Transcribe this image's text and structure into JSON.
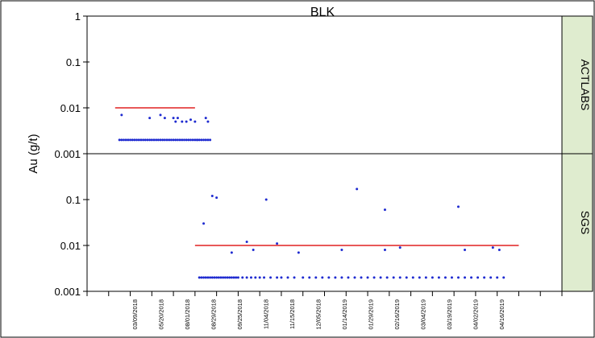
{
  "chart_data": {
    "type": "scatter",
    "title": "BLK",
    "ylabel": "Au (g/t)",
    "y_scale": "log",
    "colors": {
      "points": "#1f2bd0",
      "threshold": "#e02020",
      "panel_fill": "#dfeccf"
    },
    "x_ticks": [
      "03/09/2018",
      "05/20/2018",
      "08/01/2018",
      "08/29/2018",
      "09/25/2018",
      "11/04/2018",
      "11/15/2018",
      "12/05/2018",
      "01/14/2019",
      "01/29/2019",
      "02/16/2019",
      "03/04/2019",
      "03/19/2019",
      "04/02/2019",
      "04/16/2019"
    ],
    "panels": [
      {
        "name": "ACTLABS",
        "y_ticks": [
          "1",
          "0.1",
          "0.01",
          "0.001"
        ],
        "ylim": [
          0.001,
          1
        ],
        "threshold": 0.01,
        "threshold_x": [
          1.3,
          5.0
        ],
        "series": {
          "x": [
            1.5,
            1.6,
            1.7,
            1.8,
            1.9,
            2.0,
            2.1,
            2.2,
            2.3,
            2.4,
            2.5,
            2.6,
            2.7,
            2.8,
            2.9,
            3.0,
            3.1,
            3.2,
            3.3,
            3.4,
            3.5,
            3.6,
            3.7,
            3.8,
            3.9,
            4.0,
            4.1,
            4.2,
            4.3,
            4.4,
            4.5,
            4.6,
            4.7,
            4.8,
            4.9,
            5.0,
            5.1,
            5.2,
            5.3,
            5.4,
            5.5,
            5.6,
            1.6,
            2.9,
            3.4,
            3.6,
            4.0,
            4.1,
            4.2,
            4.4,
            4.6,
            5.0,
            5.5,
            5.6,
            5.7,
            4.8,
            5.1
          ],
          "y": [
            0.002,
            0.002,
            0.002,
            0.002,
            0.002,
            0.002,
            0.002,
            0.002,
            0.002,
            0.002,
            0.002,
            0.002,
            0.002,
            0.002,
            0.002,
            0.002,
            0.002,
            0.002,
            0.002,
            0.002,
            0.002,
            0.002,
            0.002,
            0.002,
            0.002,
            0.002,
            0.002,
            0.002,
            0.002,
            0.002,
            0.002,
            0.002,
            0.002,
            0.002,
            0.002,
            0.002,
            0.002,
            0.002,
            0.002,
            0.002,
            0.002,
            0.002,
            0.007,
            0.006,
            0.007,
            0.006,
            0.006,
            0.005,
            0.006,
            0.005,
            0.005,
            0.005,
            0.006,
            0.005,
            0.002,
            0.0055,
            0.002
          ]
        }
      },
      {
        "name": "SGS",
        "y_ticks": [
          "0.1",
          "0.01",
          "0.001"
        ],
        "ylim": [
          0.001,
          1
        ],
        "threshold": 0.01,
        "threshold_x": [
          5.0,
          20.0
        ],
        "series": {
          "x": [
            5.2,
            5.3,
            5.4,
            5.5,
            5.6,
            5.7,
            5.8,
            5.9,
            6.0,
            6.1,
            6.2,
            6.3,
            6.4,
            6.5,
            6.6,
            6.7,
            6.8,
            6.9,
            7.0,
            7.2,
            7.4,
            7.6,
            7.8,
            8.0,
            8.2,
            8.5,
            8.8,
            9.0,
            9.3,
            9.6,
            10.0,
            10.3,
            10.6,
            10.9,
            11.2,
            11.5,
            11.8,
            12.1,
            12.4,
            12.7,
            13.0,
            13.3,
            13.6,
            13.9,
            14.2,
            14.5,
            14.8,
            15.1,
            15.4,
            15.7,
            16.0,
            16.3,
            16.6,
            16.9,
            17.2,
            17.5,
            17.8,
            18.1,
            18.4,
            18.7,
            19.0,
            19.3,
            6.7,
            7.4,
            7.7,
            8.8,
            9.8,
            11.8,
            13.8,
            14.5,
            17.5,
            18.8,
            19.1,
            8.3,
            12.5,
            17.2,
            13.8,
            6.0,
            5.4,
            5.8
          ],
          "y": [
            0.002,
            0.002,
            0.002,
            0.002,
            0.002,
            0.002,
            0.002,
            0.002,
            0.002,
            0.002,
            0.002,
            0.002,
            0.002,
            0.002,
            0.002,
            0.002,
            0.002,
            0.002,
            0.002,
            0.002,
            0.002,
            0.002,
            0.002,
            0.002,
            0.002,
            0.002,
            0.002,
            0.002,
            0.002,
            0.002,
            0.002,
            0.002,
            0.002,
            0.002,
            0.002,
            0.002,
            0.002,
            0.002,
            0.002,
            0.002,
            0.002,
            0.002,
            0.002,
            0.002,
            0.002,
            0.002,
            0.002,
            0.002,
            0.002,
            0.002,
            0.002,
            0.002,
            0.002,
            0.002,
            0.002,
            0.002,
            0.002,
            0.002,
            0.002,
            0.002,
            0.002,
            0.002,
            0.007,
            0.012,
            0.008,
            0.011,
            0.007,
            0.008,
            0.008,
            0.009,
            0.008,
            0.009,
            0.008,
            0.1,
            0.17,
            0.07,
            0.06,
            0.11,
            0.03,
            0.12
          ]
        }
      }
    ]
  }
}
